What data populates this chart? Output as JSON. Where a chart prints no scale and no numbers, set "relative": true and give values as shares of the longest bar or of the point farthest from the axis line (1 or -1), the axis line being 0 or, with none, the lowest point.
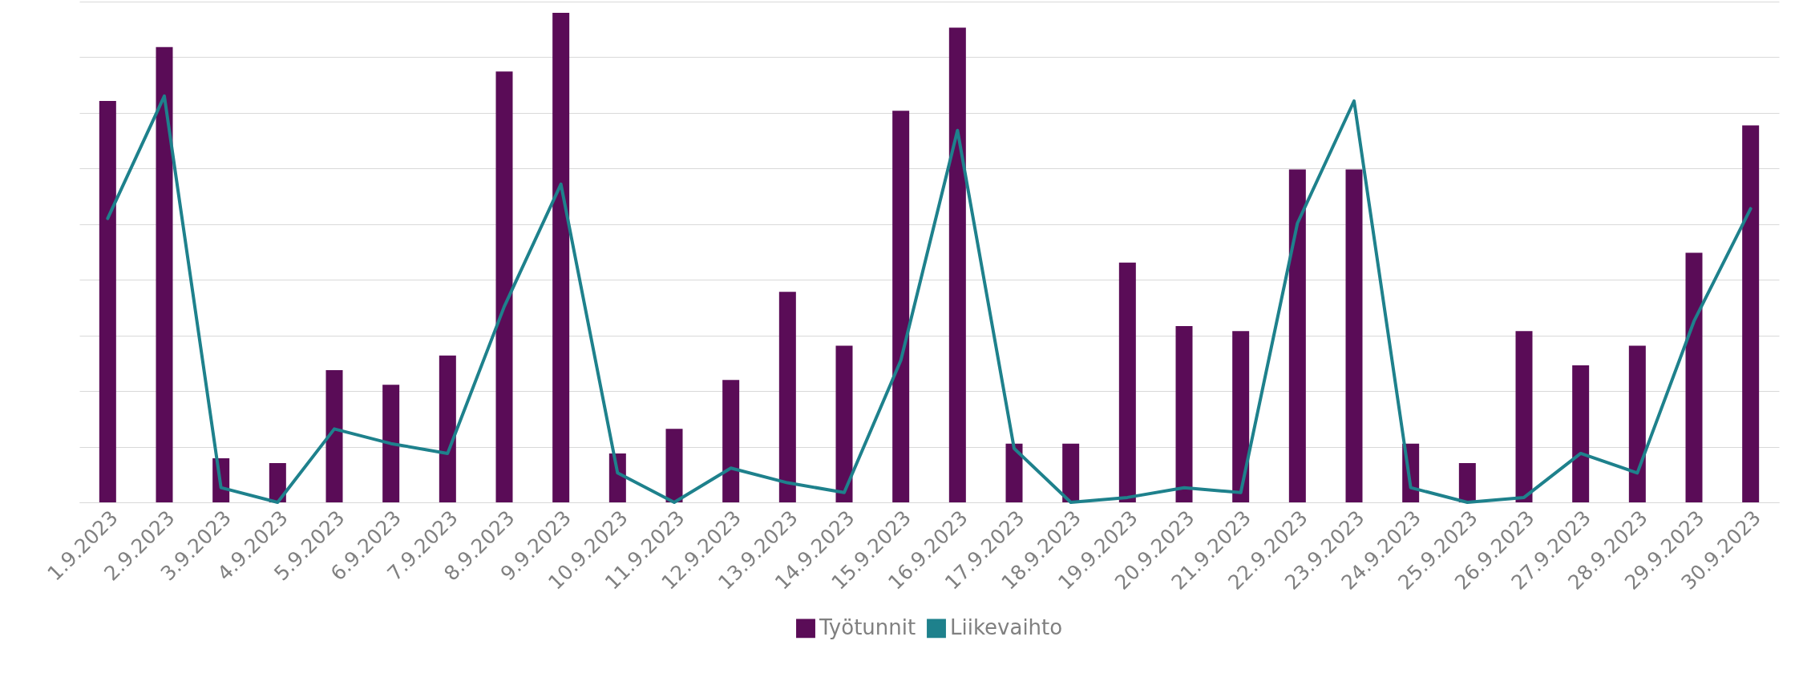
{
  "chart_data": {
    "type": "bar",
    "relative": true,
    "grid": "y",
    "legend": "bottom",
    "categories": [
      "1.9.2023",
      "2.9.2023",
      "3.9.2023",
      "4.9.2023",
      "5.9.2023",
      "6.9.2023",
      "7.9.2023",
      "8.9.2023",
      "9.9.2023",
      "10.9.2023",
      "11.9.2023",
      "12.9.2023",
      "13.9.2023",
      "14.9.2023",
      "15.9.2023",
      "16.9.2023",
      "17.9.2023",
      "18.9.2023",
      "19.9.2023",
      "20.9.2023",
      "21.9.2023",
      "22.9.2023",
      "23.9.2023",
      "24.9.2023",
      "25.9.2023",
      "26.9.2023",
      "27.9.2023",
      "28.9.2023",
      "29.9.2023",
      "30.9.2023"
    ],
    "series": [
      {
        "name": "Työtunnit",
        "color": "#5a0c57",
        "values": [
          0.82,
          0.93,
          0.09,
          0.08,
          0.27,
          0.24,
          0.3,
          0.88,
          1,
          0.1,
          0.15,
          0.25,
          0.43,
          0.32,
          0.8,
          0.97,
          0.12,
          0.12,
          0.49,
          0.36,
          0.35,
          0.68,
          0.68,
          0.12,
          0.08,
          0.35,
          0.28,
          0.32,
          0.51,
          0.77
        ]
      },
      {
        "name": "Liikevaihto",
        "type": "line",
        "color": "#1e818c",
        "values": [
          0.58,
          0.83,
          0.03,
          0,
          0.15,
          0.12,
          0.1,
          0.4,
          0.65,
          0.06,
          0,
          0.07,
          0.04,
          0.02,
          0.29,
          0.76,
          0.11,
          0,
          0.01,
          0.03,
          0.02,
          0.57,
          0.82,
          0.03,
          0,
          0.01,
          0.1,
          0.06,
          0.37,
          0.6
        ]
      }
    ]
  }
}
